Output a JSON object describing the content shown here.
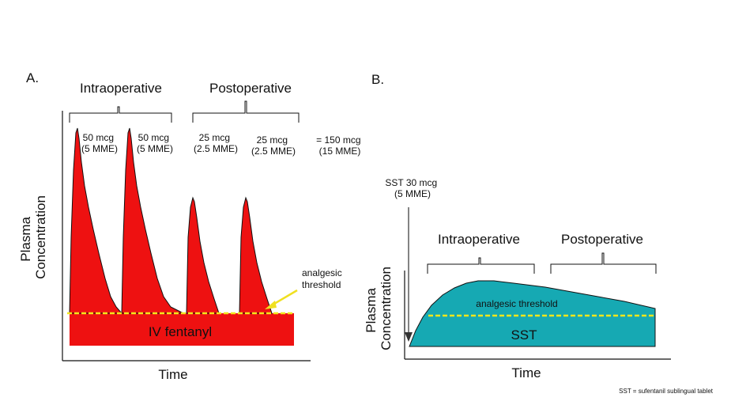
{
  "panel_a": {
    "label": "A.",
    "phase_intra": "Intraoperative",
    "phase_post": "Postoperative",
    "doses": [
      {
        "l1": "50 mcg",
        "l2": "(5 MME)"
      },
      {
        "l1": "50 mcg",
        "l2": "(5 MME)"
      },
      {
        "l1": "25 mcg",
        "l2": "(2.5 MME)"
      },
      {
        "l1": "25 mcg",
        "l2": "(2.5 MME)"
      }
    ],
    "total_l1": "= 150 mcg",
    "total_l2": "(15 MME)",
    "ylabel_l1": "Plasma",
    "ylabel_l2": "Concentration",
    "xlabel": "Time",
    "threshold_l1": "analgesic",
    "threshold_l2": "threshold",
    "base_label": "IV fentanyl"
  },
  "panel_b": {
    "label": "B.",
    "dose_l1": "SST 30 mcg",
    "dose_l2": "(5 MME)",
    "phase_intra": "Intraoperative",
    "phase_post": "Postoperative",
    "threshold_label": "analgesic threshold",
    "area_label": "SST",
    "ylabel_l1": "Plasma",
    "ylabel_l2": "Concentration",
    "xlabel": "Time"
  },
  "footnote": "SST = sufentanil sublingual tablet",
  "colors": {
    "fentanyl": "#ee1111",
    "sst": "#16a9b3",
    "threshold": "#f2e61c",
    "arrow": "#f0e020",
    "ink": "#111111"
  }
}
